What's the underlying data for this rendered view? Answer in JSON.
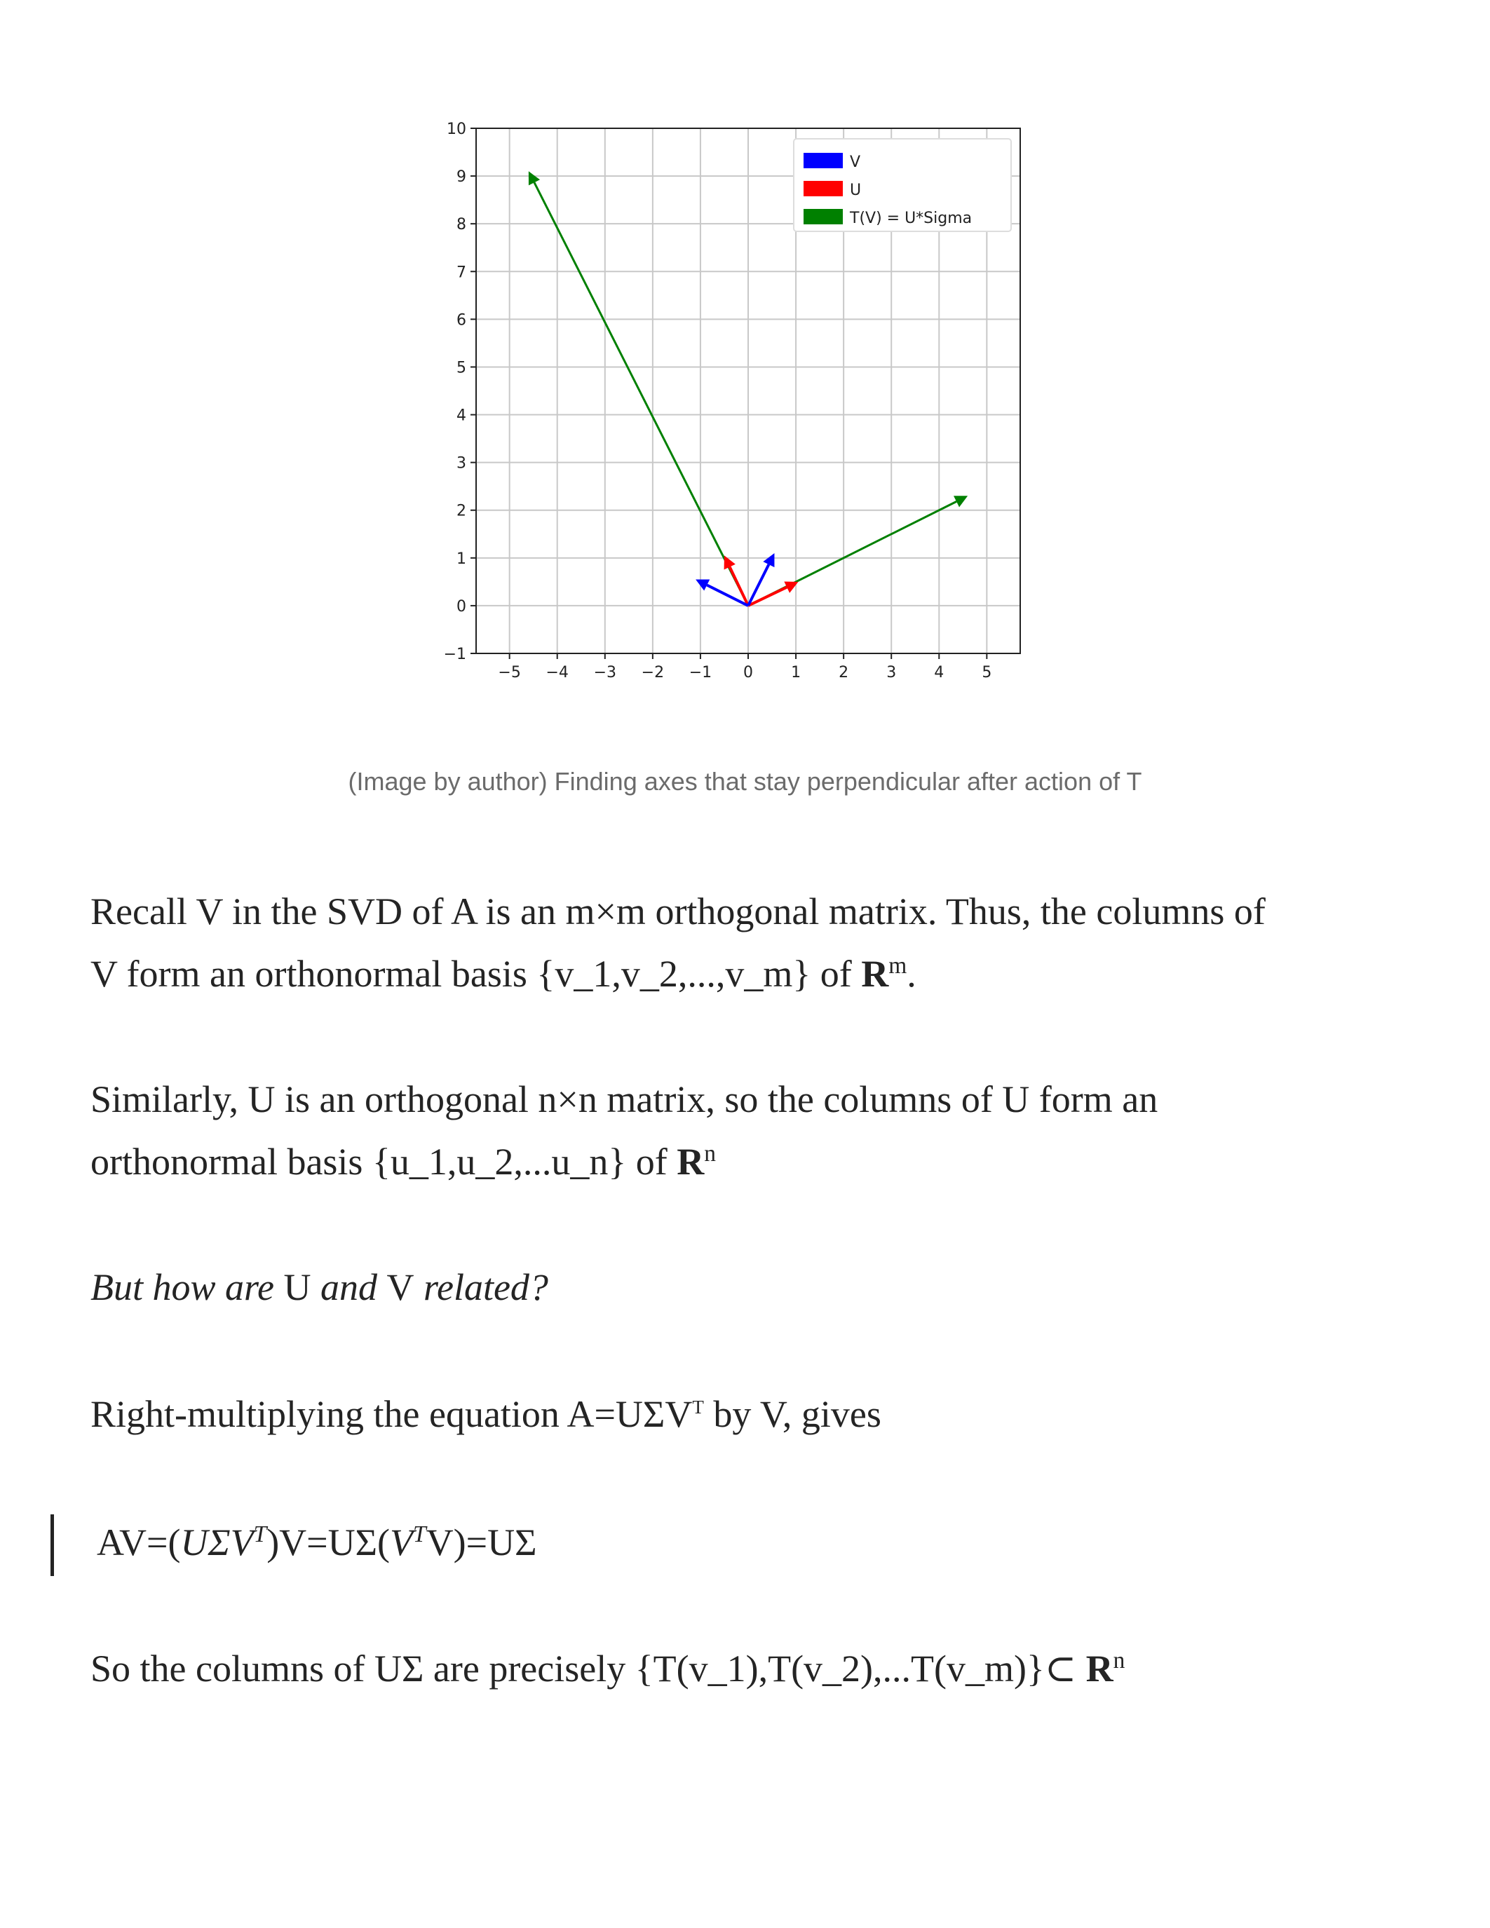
{
  "chart_data": {
    "type": "quiver",
    "xlim": [
      -5.7,
      5.7
    ],
    "ylim": [
      -1,
      10
    ],
    "x_ticks": [
      "−5",
      "−4",
      "−3",
      "−2",
      "−1",
      "0",
      "1",
      "2",
      "3",
      "4",
      "5"
    ],
    "y_ticks": [
      "−1",
      "0",
      "1",
      "2",
      "3",
      "4",
      "5",
      "6",
      "7",
      "8",
      "9",
      "10"
    ],
    "grid": true,
    "legend_position": "top-right",
    "series": [
      {
        "name": "V",
        "color": "#0000ff",
        "vectors": [
          [
            -1.1,
            0.55
          ],
          [
            0.55,
            1.1
          ]
        ]
      },
      {
        "name": "U",
        "color": "#ff0000",
        "vectors": [
          [
            -0.5,
            1.05
          ],
          [
            1.05,
            0.5
          ]
        ]
      },
      {
        "name": "T(V) = U*Sigma",
        "color": "#008000",
        "vectors": [
          [
            -4.6,
            9.1
          ],
          [
            4.6,
            2.3
          ]
        ]
      }
    ]
  },
  "caption": "(Image by author) Finding axes that stay perpendicular after action of T",
  "para1": {
    "text_a": "Recall V in the SVD of A is an m×m orthogonal matrix. Thus, the columns of",
    "text_b": "V form an orthonormal basis {v_1,v_2,...,v_m} of ",
    "R": "R",
    "sup": "m",
    "end": "."
  },
  "para2": {
    "text_a": "Similarly, U is an orthogonal n×n matrix, so the columns of U form an",
    "text_b": "orthonormal basis {u_1,u_2,...u_n} of ",
    "R": "R",
    "sup": "n"
  },
  "para3": {
    "i1": "But how are ",
    "u": "U",
    "i2": " and ",
    "v": "V",
    "i3": " related?"
  },
  "para4": {
    "a": "Right-multiplying the equation A=UΣV",
    "sup": "T",
    "b": " by V, gives"
  },
  "equation": {
    "a": "AV=(",
    "b": "UΣV",
    "c": "T",
    "d": ")V=UΣ(",
    "e": "V",
    "f": "T",
    "g": "V)=UΣ"
  },
  "para5": {
    "a": "So the columns of UΣ are precisely {T(v_1),T(v_2),...T(v_m)}⊂ ",
    "R": "R",
    "sup": "n"
  }
}
